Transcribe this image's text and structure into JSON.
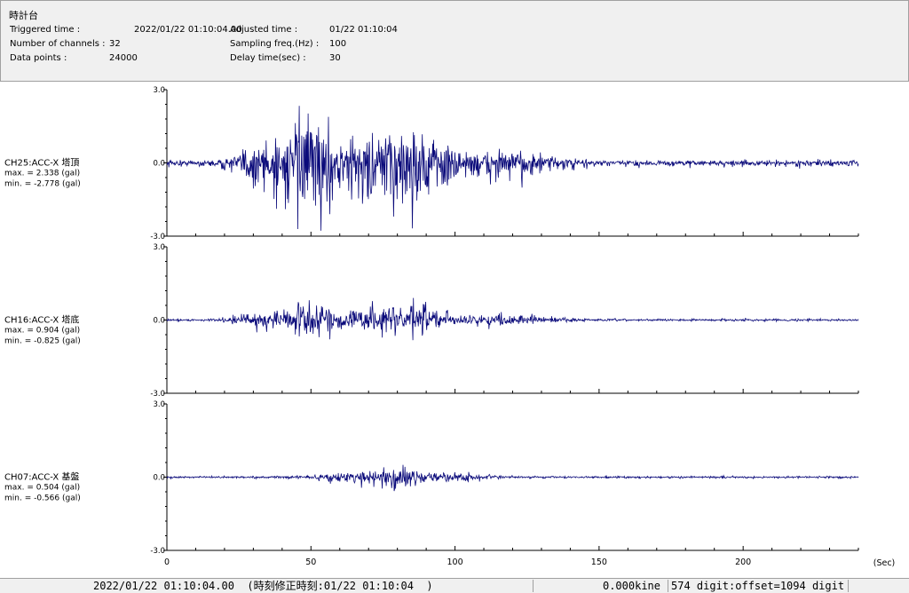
{
  "header": {
    "title": "時計台",
    "triggered_label": "Triggered time :",
    "triggered_value": "2022/01/22 01:10:04.00",
    "channels_label": "Number of channels :",
    "channels_value": "32",
    "points_label": "Data points :",
    "points_value": "24000",
    "adjusted_label": "Adjusted time :",
    "adjusted_value": "01/22 01:10:04",
    "sampling_label": "Sampling freq.(Hz) :",
    "sampling_value": "100",
    "delay_label": "Delay time(sec) :",
    "delay_value": "30"
  },
  "chart_data": {
    "type": "line",
    "x_unit": "(Sec)",
    "xlim": [
      0,
      240
    ],
    "x_ticks": [
      "0",
      "50",
      "100",
      "150",
      "200"
    ],
    "series_color": "#0a0a7a",
    "channels": [
      {
        "name": "CH25:ACC-X 塔頂",
        "max_text": "max. = 2.338 (gal)",
        "min_text": "min. = -2.778 (gal)",
        "max": 2.338,
        "min": -2.778,
        "ylim": [
          -3.0,
          3.0
        ],
        "y_ticks": [
          "3.0",
          "0.0",
          "-3.0"
        ]
      },
      {
        "name": "CH16:ACC-X 塔底",
        "max_text": "max. = 0.904 (gal)",
        "min_text": "min. = -0.825 (gal)",
        "max": 0.904,
        "min": -0.825,
        "ylim": [
          -3.0,
          3.0
        ],
        "y_ticks": [
          "3.0",
          "0.0",
          "-3.0"
        ]
      },
      {
        "name": "CH07:ACC-X 基盤",
        "max_text": "max. = 0.504 (gal)",
        "min_text": "min. = -0.566 (gal)",
        "max": 0.504,
        "min": -0.566,
        "ylim": [
          -3.0,
          3.0
        ],
        "y_ticks": [
          "3.0",
          "0.0",
          "-3.0"
        ]
      }
    ]
  },
  "status": {
    "time_text": "2022/01/22 01:10:04.00  (時刻修正時刻:01/22 01:10:04  )",
    "kine_text": "0.000kine",
    "digit_text": "574 digit:offset=1094 digit"
  }
}
